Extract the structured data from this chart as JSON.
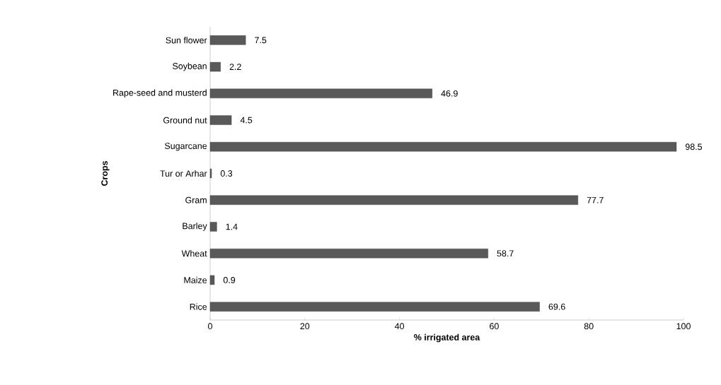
{
  "chart_data": {
    "type": "bar",
    "orientation": "horizontal",
    "xlabel": "% irrigated area",
    "ylabel": "Crops",
    "categories": [
      "Sun flower",
      "Soybean",
      "Rape-seed and musterd",
      "Ground nut",
      "Sugarcane",
      "Tur or Arhar",
      "Gram",
      "Barley",
      "Wheat",
      "Maize",
      "Rice"
    ],
    "values": [
      7.5,
      2.2,
      46.9,
      4.5,
      98.5,
      0.3,
      77.7,
      1.4,
      58.7,
      0.9,
      69.6
    ],
    "color": "#595959",
    "xlim": [
      0,
      100
    ],
    "xticks": [
      0,
      20,
      40,
      60,
      80,
      100
    ],
    "data_labels": true
  }
}
